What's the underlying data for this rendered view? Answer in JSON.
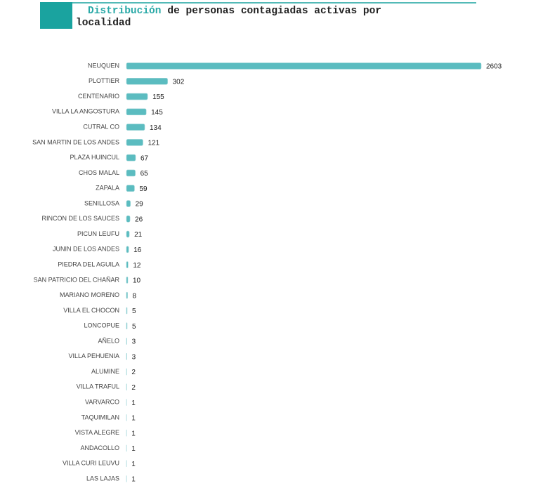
{
  "chart_data": {
    "type": "bar",
    "orientation": "horizontal",
    "title_parts": [
      "Distribución",
      "de personas contagiadas activas por",
      "localidad"
    ],
    "title_color": "#2aa9a7",
    "color": "#5bbcc0",
    "categories": [
      "NEUQUEN",
      "PLOTTIER",
      "CENTENARIO",
      "VILLA LA ANGOSTURA",
      "CUTRAL CO",
      "SAN MARTIN DE LOS ANDES",
      "PLAZA HUINCUL",
      "CHOS MALAL",
      "ZAPALA",
      "SENILLOSA",
      "RINCON DE LOS SAUCES",
      "PICUN LEUFU",
      "JUNIN DE LOS ANDES",
      "PIEDRA DEL AGUILA",
      "SAN PATRICIO DEL CHAÑAR",
      "MARIANO MORENO",
      "VILLA EL CHOCON",
      "LONCOPUE",
      "AÑELO",
      "VILLA PEHUENIA",
      "ALUMINE",
      "VILLA TRAFUL",
      "VARVARCO",
      "TAQUIMILAN",
      "VISTA ALEGRE",
      "ANDACOLLO",
      "VILLA CURI LEUVU",
      "LAS LAJAS"
    ],
    "values": [
      2603,
      302,
      155,
      145,
      134,
      121,
      67,
      65,
      59,
      29,
      26,
      21,
      16,
      12,
      10,
      8,
      5,
      5,
      3,
      3,
      2,
      2,
      1,
      1,
      1,
      1,
      1,
      1
    ]
  }
}
